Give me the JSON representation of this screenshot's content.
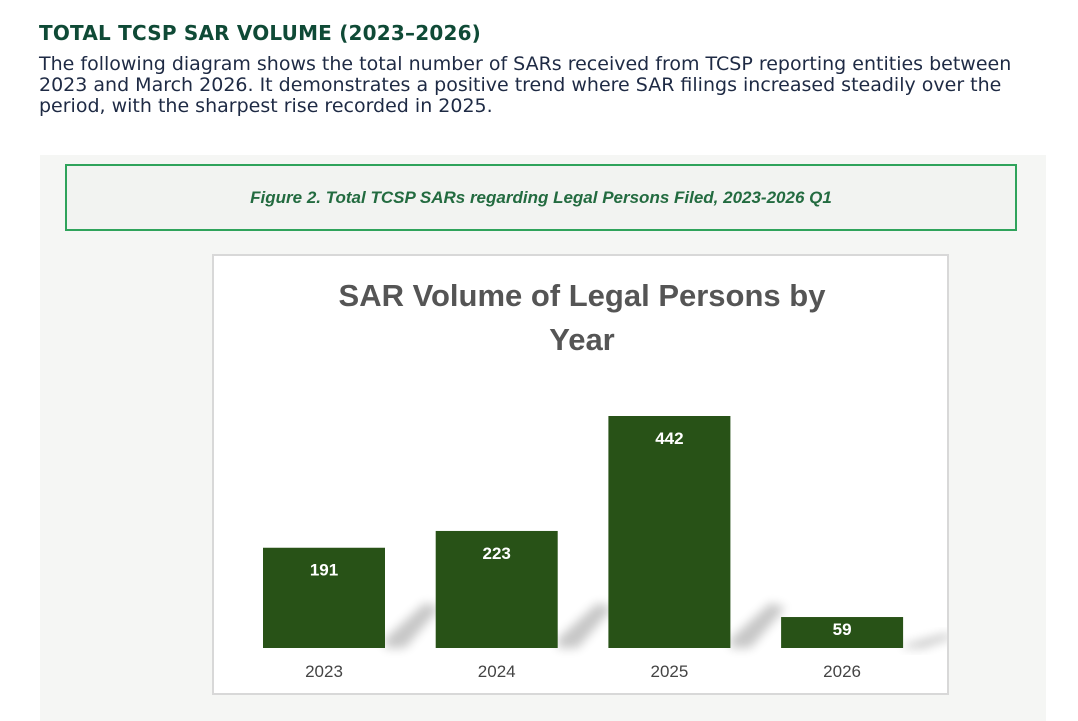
{
  "section": {
    "heading": "TOTAL TCSP SAR VOLUME (2023–2026)",
    "paragraph": "The following diagram shows the total number of SARs received from TCSP reporting entities between 2023 and March 2026. It demonstrates a positive trend where SAR filings increased steadily over the period, with the sharpest rise recorded in 2025."
  },
  "figure": {
    "caption": "Figure 2. Total TCSP SARs regarding Legal Persons Filed, 2023-2026 Q1"
  },
  "colors": {
    "heading": "#0f4a36",
    "bar": "#285217",
    "caption_border": "#2fa35b"
  },
  "chart_data": {
    "type": "bar",
    "title_lines": [
      "SAR Volume of Legal Persons by",
      "Year"
    ],
    "categories": [
      "2023",
      "2024",
      "2025",
      "2026"
    ],
    "values": [
      191,
      223,
      442,
      59
    ],
    "xlabel": "",
    "ylabel": "",
    "ylim": [
      0,
      442
    ],
    "grid": false,
    "legend": "none",
    "data_labels": true
  }
}
